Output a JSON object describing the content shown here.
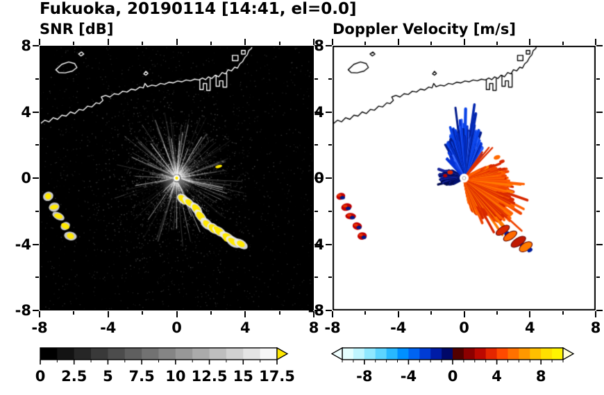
{
  "title": "Fukuoka, 20190114 [14:41, el=0.0]",
  "panels": {
    "snr": {
      "label": "SNR [dB]"
    },
    "doppler": {
      "label": "Doppler Velocity [m/s]"
    }
  },
  "axes": {
    "xlim": [
      -8,
      8
    ],
    "ylim": [
      -8,
      8
    ],
    "major_ticks": [
      -8,
      -4,
      0,
      4,
      8
    ],
    "minor_ticks": [
      -6,
      -2,
      2,
      6
    ],
    "x_tick_labels": [
      "-8",
      "-4",
      "0",
      "4",
      "8"
    ],
    "y_tick_labels": [
      "8",
      "4",
      "0",
      "-4",
      "-8"
    ],
    "y_tick_values": [
      8,
      4,
      0,
      -4,
      -8
    ]
  },
  "colorbar_snr": {
    "range": [
      0,
      17.5
    ],
    "colors": [
      "#000000",
      "#131313",
      "#262626",
      "#393939",
      "#4c4c4c",
      "#5f5f5f",
      "#727272",
      "#858585",
      "#989898",
      "#ababab",
      "#bebebe",
      "#d1d1d1",
      "#e4e4e4",
      "#f7f7f7"
    ],
    "over_color": "#ffe800",
    "tick_values": [
      0,
      2.5,
      5,
      7.5,
      10,
      12.5,
      15,
      17.5
    ],
    "tick_labels": [
      "0",
      "2.5",
      "5",
      "7.5",
      "10",
      "12.5",
      "15",
      "17.5"
    ]
  },
  "colorbar_doppler": {
    "range": [
      -10,
      10
    ],
    "colors": [
      "#e4ffff",
      "#bff6ff",
      "#8fe8ff",
      "#5cd4ff",
      "#28b8ff",
      "#0090ff",
      "#0064f2",
      "#003cd4",
      "#001ca6",
      "#000868",
      "#520000",
      "#8c0000",
      "#bc0800",
      "#e42600",
      "#ff4a00",
      "#ff7100",
      "#ff9800",
      "#ffbf00",
      "#ffdf00",
      "#fff400"
    ],
    "under_color": "#f0ffff",
    "over_color": "#ffffd8",
    "tick_values": [
      -8,
      -4,
      0,
      4,
      8
    ],
    "tick_labels": [
      "-8",
      "-4",
      "0",
      "4",
      "8"
    ]
  },
  "chart_data": [
    {
      "type": "heatmap",
      "panel": "snr",
      "title": "SNR [dB]",
      "xlabel": "",
      "ylabel": "",
      "xlim": [
        -8,
        8
      ],
      "ylim": [
        -8,
        8
      ],
      "colorbar_range": [
        0,
        17.5
      ],
      "units": "dB",
      "description": "Radar SNR PPI at el=0.0 deg: faint gray radial clutter rays centered on radar at origin over black background; saturated (>17.5 dB) echoes rendered yellow",
      "radar_origin": [
        0,
        0
      ],
      "strong_echo_arc": [
        [
          0.35,
          -1.2
        ],
        [
          0.8,
          -1.55
        ],
        [
          1.15,
          -1.95
        ],
        [
          1.45,
          -2.35
        ],
        [
          1.75,
          -2.7
        ],
        [
          2.1,
          -3.0
        ],
        [
          2.5,
          -3.3
        ],
        [
          2.9,
          -3.55
        ],
        [
          3.3,
          -3.8
        ],
        [
          3.7,
          -4.05
        ]
      ],
      "strong_echo_west": [
        [
          -7.5,
          -1.1
        ],
        [
          -7.15,
          -1.75
        ],
        [
          -6.9,
          -2.3
        ],
        [
          -6.5,
          -2.9
        ],
        [
          -6.2,
          -3.5
        ]
      ]
    },
    {
      "type": "heatmap",
      "panel": "doppler",
      "title": "Doppler Velocity [m/s]",
      "xlabel": "",
      "ylabel": "",
      "xlim": [
        -8,
        8
      ],
      "ylim": [
        -8,
        8
      ],
      "colorbar_range": [
        -10,
        10
      ],
      "units": "m/s",
      "description": "Doppler velocity PPI: negative (blue, toward radar) fan north of origin, positive (red-orange, away) fan east to south-southeast, compact negative blob just west of origin, isolated echoes southwest and southeast",
      "fans": [
        {
          "name": "north-negative",
          "angles": [
            52,
            124
          ],
          "peak_angle": 88,
          "radius_km": [
            1.3,
            3.3
          ],
          "colors": [
            "#0533d6",
            "#0428b0",
            "#0a44e8",
            "#021c8c",
            "#2f63ff"
          ]
        },
        {
          "name": "east-southeast-positive",
          "angles": [
            -80,
            28
          ],
          "peak_angle": -42,
          "radius_km": [
            1.4,
            3.3
          ],
          "colors": [
            "#ff5e00",
            "#f04400",
            "#ff7b00",
            "#d82800"
          ]
        },
        {
          "name": "west-negative-blob",
          "angles": [
            148,
            208
          ],
          "peak_angle": 180,
          "radius_km": [
            0.7,
            1.4
          ],
          "colors": [
            "#001070",
            "#000a50",
            "#16249a"
          ]
        }
      ],
      "isolated_echoes_se": [
        [
          2.35,
          -3.15
        ],
        [
          2.8,
          -3.5
        ],
        [
          3.3,
          -3.85
        ],
        [
          3.75,
          -4.15
        ]
      ],
      "isolated_echoes_sw": [
        [
          -7.5,
          -1.1
        ],
        [
          -7.15,
          -1.75
        ],
        [
          -6.9,
          -2.3
        ],
        [
          -6.5,
          -2.9
        ],
        [
          -6.2,
          -3.5
        ]
      ]
    }
  ],
  "coastline": {
    "color_on_snr": "#ffffff",
    "color_on_doppler": "#000000",
    "paths": [
      [
        [
          -8,
          3.25
        ],
        [
          -7.7,
          3.5
        ],
        [
          -7.45,
          3.4
        ],
        [
          -7.2,
          3.65
        ],
        [
          -6.95,
          3.55
        ],
        [
          -6.7,
          3.8
        ],
        [
          -6.45,
          3.75
        ],
        [
          -6.2,
          4.0
        ],
        [
          -5.95,
          3.9
        ],
        [
          -5.7,
          4.15
        ],
        [
          -5.45,
          4.1
        ],
        [
          -5.2,
          4.35
        ],
        [
          -4.95,
          4.3
        ],
        [
          -4.7,
          4.55
        ],
        [
          -4.5,
          4.5
        ],
        [
          -4.3,
          4.7
        ],
        [
          -4.4,
          4.9
        ],
        [
          -4.15,
          5.0
        ],
        [
          -3.9,
          4.9
        ],
        [
          -3.65,
          5.1
        ],
        [
          -3.4,
          5.05
        ],
        [
          -3.15,
          5.25
        ],
        [
          -2.9,
          5.2
        ],
        [
          -2.65,
          5.38
        ],
        [
          -2.4,
          5.32
        ],
        [
          -2.15,
          5.5
        ],
        [
          -1.95,
          5.45
        ],
        [
          -1.85,
          5.72
        ],
        [
          -1.7,
          5.52
        ],
        [
          -1.45,
          5.62
        ],
        [
          -1.2,
          5.57
        ],
        [
          -0.95,
          5.72
        ],
        [
          -0.7,
          5.67
        ],
        [
          -0.45,
          5.8
        ],
        [
          -0.2,
          5.75
        ],
        [
          0.05,
          5.87
        ],
        [
          0.3,
          5.82
        ],
        [
          0.55,
          5.93
        ],
        [
          0.8,
          5.88
        ],
        [
          1.05,
          5.98
        ],
        [
          1.3,
          5.93
        ],
        [
          1.5,
          6.05
        ],
        [
          1.68,
          5.95
        ],
        [
          1.85,
          6.12
        ],
        [
          2.05,
          6.02
        ],
        [
          2.25,
          6.22
        ],
        [
          2.45,
          6.12
        ],
        [
          2.65,
          6.38
        ],
        [
          2.85,
          6.3
        ],
        [
          3.0,
          6.55
        ],
        [
          3.2,
          6.48
        ],
        [
          3.38,
          6.7
        ],
        [
          3.55,
          6.65
        ],
        [
          3.68,
          6.9
        ],
        [
          3.85,
          7.05
        ],
        [
          3.98,
          7.3
        ],
        [
          4.12,
          7.45
        ],
        [
          4.2,
          7.7
        ],
        [
          4.35,
          7.82
        ],
        [
          4.42,
          8.0
        ]
      ],
      [
        [
          -7.05,
          6.55
        ],
        [
          -6.7,
          6.88
        ],
        [
          -6.3,
          7.02
        ],
        [
          -5.95,
          6.92
        ],
        [
          -5.82,
          6.68
        ],
        [
          -6.08,
          6.47
        ],
        [
          -6.5,
          6.36
        ],
        [
          -6.87,
          6.38
        ],
        [
          -7.05,
          6.55
        ]
      ],
      [
        [
          -5.72,
          7.5
        ],
        [
          -5.55,
          7.62
        ],
        [
          -5.42,
          7.5
        ],
        [
          -5.58,
          7.38
        ],
        [
          -5.72,
          7.5
        ]
      ],
      [
        [
          -1.92,
          6.3
        ],
        [
          -1.8,
          6.45
        ],
        [
          -1.68,
          6.33
        ],
        [
          -1.8,
          6.22
        ],
        [
          -1.92,
          6.3
        ]
      ],
      [
        [
          1.35,
          5.93
        ],
        [
          1.35,
          5.35
        ],
        [
          1.55,
          5.35
        ],
        [
          1.55,
          5.72
        ],
        [
          1.75,
          5.72
        ],
        [
          1.75,
          5.3
        ],
        [
          1.95,
          5.3
        ],
        [
          1.95,
          6.0
        ]
      ],
      [
        [
          2.3,
          6.2
        ],
        [
          2.3,
          5.55
        ],
        [
          2.5,
          5.55
        ],
        [
          2.5,
          5.88
        ],
        [
          2.7,
          5.88
        ],
        [
          2.7,
          5.5
        ],
        [
          2.92,
          5.5
        ],
        [
          2.92,
          6.33
        ]
      ],
      [
        [
          3.25,
          7.1
        ],
        [
          3.58,
          7.1
        ],
        [
          3.58,
          7.42
        ],
        [
          3.25,
          7.42
        ],
        [
          3.25,
          7.1
        ]
      ],
      [
        [
          3.78,
          7.5
        ],
        [
          4.0,
          7.5
        ],
        [
          4.0,
          7.72
        ],
        [
          3.78,
          7.72
        ],
        [
          3.78,
          7.5
        ]
      ]
    ]
  }
}
